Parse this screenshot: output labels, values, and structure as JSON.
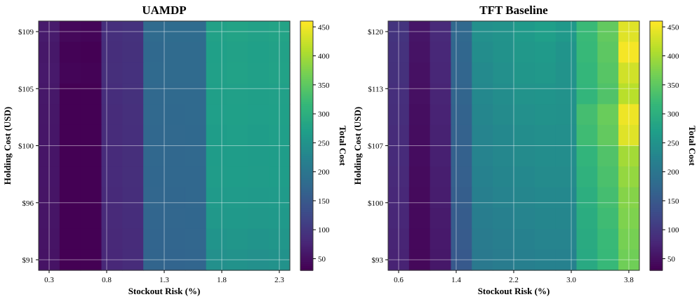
{
  "chart_data": [
    {
      "type": "heatmap",
      "title": "UAMDP",
      "xlabel": "Stockout Risk (%)",
      "ylabel": "Holding Cost (USD)",
      "x_ticks": [
        "0.3",
        "0.8",
        "1.3",
        "1.8",
        "2.3"
      ],
      "y_ticks": [
        "$91",
        "$96",
        "$100",
        "$105",
        "$109"
      ],
      "colorbar": {
        "label": "Total Cost",
        "min": 30,
        "max": 460,
        "ticks": [
          "50",
          "100",
          "150",
          "200",
          "250",
          "300",
          "350",
          "400",
          "450"
        ]
      },
      "grid": true,
      "values": [
        [
          62,
          38,
          35,
          88,
          92,
          178,
          180,
          180,
          275,
          278,
          275,
          278
        ],
        [
          58,
          32,
          30,
          86,
          90,
          176,
          178,
          178,
          272,
          275,
          272,
          275
        ],
        [
          60,
          35,
          32,
          87,
          91,
          177,
          179,
          179,
          273,
          276,
          273,
          276
        ],
        [
          58,
          30,
          30,
          85,
          90,
          175,
          177,
          177,
          271,
          273,
          271,
          273
        ],
        [
          57,
          29,
          29,
          84,
          89,
          175,
          176,
          177,
          270,
          272,
          270,
          272
        ],
        [
          56,
          28,
          28,
          83,
          88,
          174,
          175,
          176,
          268,
          270,
          268,
          270
        ],
        [
          55,
          27,
          27,
          82,
          87,
          173,
          174,
          175,
          266,
          268,
          266,
          268
        ],
        [
          55,
          27,
          27,
          82,
          87,
          172,
          173,
          174,
          265,
          267,
          265,
          267
        ],
        [
          54,
          27,
          27,
          81,
          86,
          171,
          172,
          173,
          262,
          264,
          262,
          264
        ],
        [
          54,
          27,
          27,
          80,
          85,
          170,
          171,
          172,
          258,
          260,
          258,
          260
        ],
        [
          53,
          26,
          26,
          79,
          84,
          169,
          170,
          171,
          252,
          255,
          252,
          255
        ],
        [
          52,
          25,
          25,
          78,
          83,
          168,
          169,
          170,
          245,
          248,
          245,
          248
        ]
      ]
    },
    {
      "type": "heatmap",
      "title": "TFT Baseline",
      "xlabel": "Stockout Risk (%)",
      "ylabel": "Holding Cost (USD)",
      "x_ticks": [
        "0.6",
        "1.4",
        "2.2",
        "3.0",
        "3.8"
      ],
      "y_ticks": [
        "$93",
        "$100",
        "$107",
        "$113",
        "$120"
      ],
      "colorbar": {
        "label": "Total Cost",
        "min": 30,
        "max": 460,
        "ticks": [
          "50",
          "100",
          "150",
          "200",
          "250",
          "300",
          "350",
          "400",
          "450"
        ]
      },
      "grid": true,
      "values": [
        [
          95,
          55,
          80,
          175,
          245,
          250,
          262,
          270,
          260,
          320,
          355,
          440
        ],
        [
          92,
          52,
          78,
          172,
          240,
          248,
          258,
          262,
          252,
          318,
          350,
          455
        ],
        [
          90,
          50,
          76,
          170,
          235,
          245,
          255,
          258,
          250,
          315,
          345,
          430
        ],
        [
          88,
          48,
          74,
          168,
          232,
          240,
          250,
          252,
          248,
          312,
          340,
          415
        ],
        [
          86,
          46,
          72,
          166,
          228,
          236,
          245,
          248,
          246,
          330,
          360,
          450
        ],
        [
          84,
          45,
          70,
          164,
          224,
          232,
          240,
          244,
          244,
          325,
          355,
          440
        ],
        [
          82,
          44,
          68,
          162,
          222,
          230,
          236,
          240,
          240,
          310,
          340,
          400
        ],
        [
          80,
          42,
          66,
          160,
          220,
          226,
          232,
          236,
          236,
          305,
          335,
          390
        ],
        [
          78,
          41,
          64,
          158,
          216,
          222,
          228,
          232,
          232,
          300,
          330,
          380
        ],
        [
          76,
          40,
          62,
          155,
          212,
          218,
          224,
          228,
          228,
          296,
          325,
          375
        ],
        [
          74,
          39,
          60,
          152,
          208,
          214,
          220,
          224,
          224,
          292,
          320,
          370
        ],
        [
          72,
          38,
          58,
          150,
          205,
          210,
          216,
          220,
          220,
          290,
          318,
          365
        ]
      ]
    }
  ]
}
